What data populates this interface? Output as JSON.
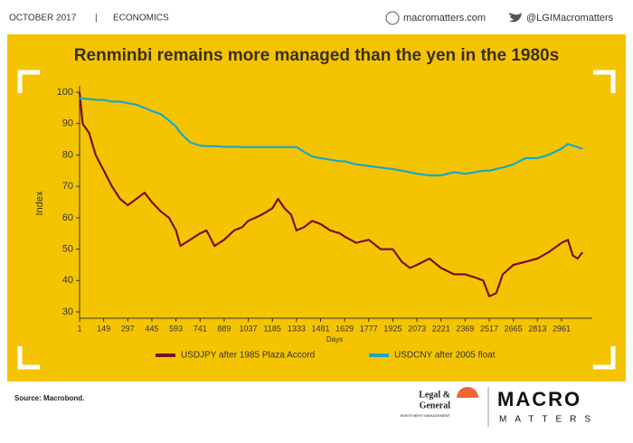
{
  "header": {
    "date": "OCTOBER 2017",
    "separator": "|",
    "section": "ECONOMICS",
    "website": "macromatters.com",
    "twitter": "@LGIMacromatters"
  },
  "footer": {
    "source": "Source: Macrobond.",
    "brand1": "Legal &",
    "brand2": "General",
    "brand3": "INVESTMENT MANAGEMENT",
    "brand4": "MACRO",
    "brand5": "MATTERS"
  },
  "chart_data": {
    "type": "line",
    "title": "Renminbi remains more managed than the yen in the 1980s",
    "xlabel": "Days",
    "ylabel": "Index",
    "x": [
      1,
      20,
      60,
      100,
      150,
      200,
      250,
      297,
      350,
      400,
      445,
      500,
      550,
      593,
      620,
      680,
      741,
      780,
      830,
      889,
      950,
      1000,
      1037,
      1080,
      1120,
      1185,
      1220,
      1260,
      1300,
      1333,
      1380,
      1430,
      1481,
      1540,
      1600,
      1629,
      1700,
      1777,
      1850,
      1925,
      1980,
      2030,
      2073,
      2150,
      2221,
      2300,
      2369,
      2430,
      2480,
      2517,
      2560,
      2600,
      2665,
      2740,
      2813,
      2880,
      2961,
      3000,
      3030,
      3060,
      3090
    ],
    "series": [
      {
        "name": "USDJPY after 1985 Plaza Accord",
        "color": "#7a1020",
        "values": [
          100,
          90,
          87,
          80,
          75,
          70,
          66,
          64,
          66,
          68,
          65,
          62,
          60,
          56,
          51,
          53,
          55,
          56,
          51,
          53,
          56,
          57,
          59,
          60,
          61,
          63,
          66,
          63,
          61,
          56,
          57,
          59,
          58,
          56,
          55,
          54,
          52,
          53,
          50,
          50,
          46,
          44,
          45,
          47,
          44,
          42,
          42,
          41,
          40,
          35,
          36,
          42,
          45,
          46,
          47,
          49,
          52,
          53,
          48,
          47,
          49
        ]
      },
      {
        "name": "USDCNY after 2005 float",
        "color": "#1aa7c9",
        "values": [
          98,
          98,
          97.8,
          97.6,
          97.5,
          97,
          97,
          96.5,
          96,
          95,
          94,
          93,
          91,
          89,
          87,
          84,
          83,
          82.8,
          82.8,
          82.6,
          82.6,
          82.5,
          82.5,
          82.5,
          82.5,
          82.5,
          82.5,
          82.5,
          82.5,
          82.5,
          81,
          79.5,
          79,
          78.5,
          78,
          78,
          77,
          76.5,
          76,
          75.5,
          75,
          74.5,
          74,
          73.5,
          73.5,
          74.5,
          74,
          74.5,
          75,
          75,
          75.5,
          76,
          77,
          79,
          79,
          80,
          82,
          83.5,
          83,
          82.5,
          82
        ]
      }
    ],
    "xlim": [
      1,
      3150
    ],
    "xticks": [
      1,
      149,
      297,
      445,
      593,
      741,
      889,
      1037,
      1185,
      1333,
      1481,
      1629,
      1777,
      1925,
      2073,
      2221,
      2369,
      2517,
      2665,
      2813,
      2961
    ],
    "ylim": [
      28,
      102
    ],
    "yticks": [
      30,
      40,
      50,
      60,
      70,
      80,
      90,
      100
    ],
    "grid": false,
    "legend": "bottom"
  }
}
